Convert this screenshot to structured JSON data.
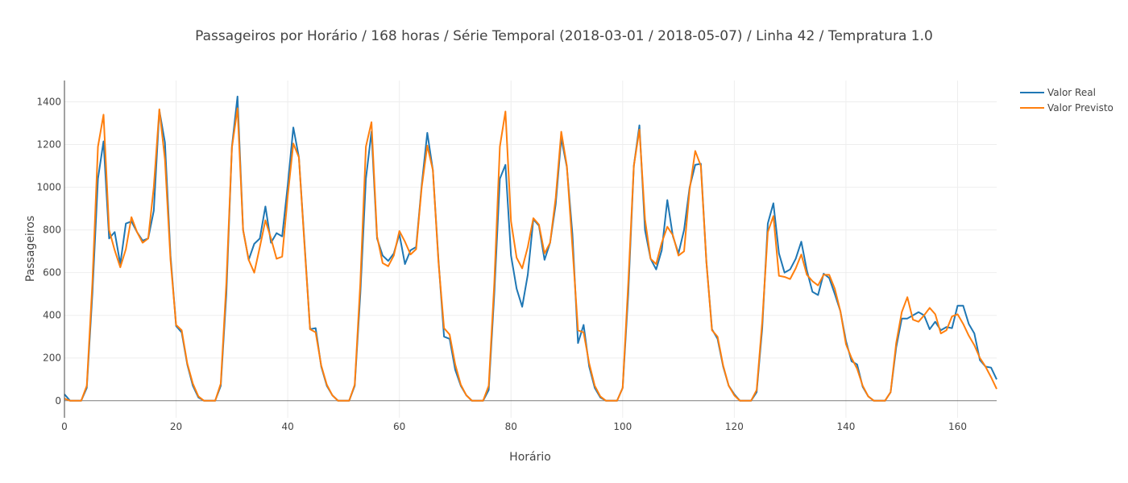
{
  "colors": {
    "series_real": "#1f77b4",
    "series_pred": "#ff7f0e",
    "grid": "#eeeeee",
    "text": "#444444"
  },
  "chart_data": {
    "type": "line",
    "title": "Passageiros por Horário / 168 horas / Série Temporal (2018-03-01 / 2018-05-07) / Linha 42 / Tempratura 1.0",
    "xlabel": "Horário",
    "ylabel": "Passageiros",
    "xlim": [
      0,
      167
    ],
    "ylim": [
      -80,
      1500
    ],
    "x_ticks": [
      0,
      20,
      40,
      60,
      80,
      100,
      120,
      140,
      160
    ],
    "y_ticks": [
      0,
      200,
      400,
      600,
      800,
      1000,
      1200,
      1400
    ],
    "grid": true,
    "legend_position": "top-right",
    "series": [
      {
        "name": "Valor Real",
        "color": "#1f77b4",
        "values": [
          30,
          0,
          0,
          0,
          60,
          500,
          1040,
          1215,
          760,
          790,
          640,
          830,
          840,
          790,
          750,
          760,
          890,
          1360,
          1210,
          680,
          350,
          320,
          170,
          70,
          15,
          0,
          0,
          0,
          70,
          500,
          1190,
          1425,
          800,
          660,
          735,
          760,
          910,
          740,
          785,
          770,
          1010,
          1280,
          1140,
          740,
          335,
          340,
          160,
          70,
          25,
          0,
          0,
          0,
          70,
          500,
          1040,
          1260,
          760,
          680,
          655,
          690,
          780,
          640,
          705,
          720,
          1010,
          1255,
          1080,
          660,
          300,
          290,
          145,
          70,
          25,
          0,
          0,
          0,
          50,
          500,
          1040,
          1105,
          680,
          525,
          440,
          590,
          850,
          820,
          660,
          740,
          920,
          1230,
          1095,
          780,
          270,
          355,
          160,
          60,
          15,
          0,
          0,
          0,
          60,
          500,
          1100,
          1290,
          800,
          665,
          615,
          705,
          940,
          770,
          690,
          800,
          1000,
          1105,
          1110,
          650,
          335,
          290,
          160,
          70,
          30,
          0,
          0,
          0,
          40,
          340,
          830,
          925,
          690,
          600,
          615,
          665,
          745,
          610,
          510,
          495,
          595,
          575,
          500,
          420,
          280,
          185,
          170,
          65,
          20,
          0,
          0,
          0,
          40,
          250,
          385,
          385,
          400,
          415,
          400,
          335,
          370,
          330,
          345,
          340,
          445,
          445,
          360,
          315,
          190,
          160,
          155,
          100
        ]
      },
      {
        "name": "Valor Previsto",
        "color": "#ff7f0e",
        "values": [
          10,
          0,
          0,
          0,
          70,
          550,
          1190,
          1340,
          800,
          705,
          625,
          710,
          860,
          790,
          740,
          760,
          1000,
          1365,
          1130,
          660,
          355,
          330,
          175,
          80,
          20,
          0,
          0,
          0,
          80,
          550,
          1185,
          1370,
          800,
          660,
          600,
          720,
          845,
          760,
          665,
          675,
          960,
          1205,
          1140,
          730,
          335,
          320,
          165,
          75,
          25,
          0,
          0,
          0,
          75,
          550,
          1190,
          1305,
          770,
          645,
          630,
          680,
          795,
          745,
          685,
          710,
          1000,
          1195,
          1080,
          650,
          340,
          310,
          170,
          75,
          25,
          0,
          0,
          0,
          70,
          550,
          1190,
          1355,
          840,
          670,
          620,
          720,
          855,
          825,
          690,
          740,
          950,
          1260,
          1100,
          720,
          330,
          320,
          175,
          70,
          20,
          0,
          0,
          0,
          60,
          550,
          1100,
          1270,
          850,
          665,
          640,
          740,
          815,
          775,
          680,
          700,
          990,
          1170,
          1100,
          650,
          330,
          300,
          165,
          70,
          25,
          0,
          0,
          0,
          50,
          370,
          790,
          865,
          585,
          580,
          570,
          620,
          685,
          590,
          560,
          540,
          590,
          590,
          525,
          420,
          265,
          200,
          150,
          70,
          20,
          0,
          0,
          0,
          40,
          270,
          415,
          485,
          380,
          370,
          400,
          435,
          405,
          315,
          330,
          395,
          405,
          360,
          305,
          260,
          200,
          160,
          110,
          55
        ]
      }
    ]
  }
}
